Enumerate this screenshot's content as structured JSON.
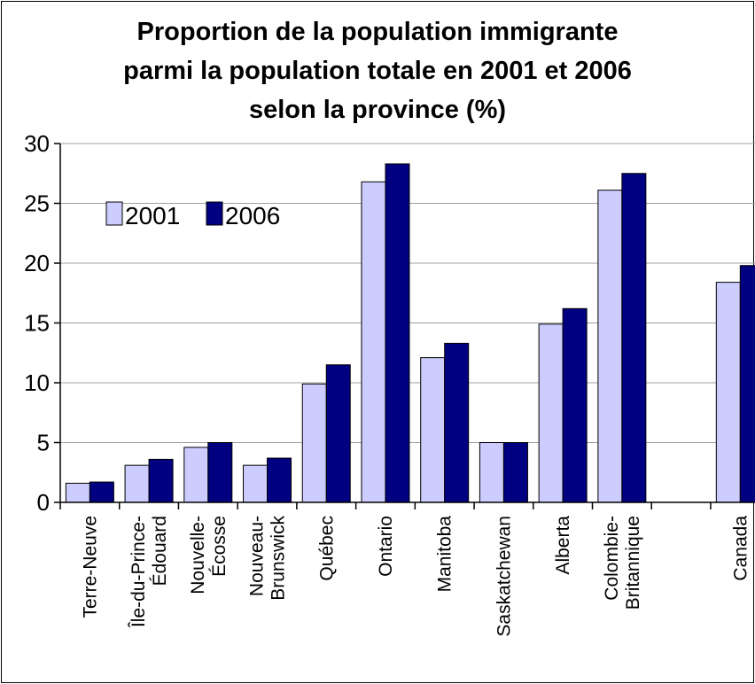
{
  "chart_data": {
    "type": "bar",
    "title_lines": [
      "Proportion de la population immigrante",
      "parmi la population totale en 2001 et 2006",
      "selon la province (%)"
    ],
    "categories": [
      [
        "Terre-Neuve"
      ],
      [
        "Île-du-Prince-",
        "Édouard"
      ],
      [
        "Nouvelle-",
        "Écosse"
      ],
      [
        "Nouveau-",
        "Brunswick"
      ],
      [
        "Québec"
      ],
      [
        "Ontario"
      ],
      [
        "Manitoba"
      ],
      [
        "Saskatchewan"
      ],
      [
        "Alberta"
      ],
      [
        "Colombie-",
        "Britannique"
      ],
      [
        ""
      ],
      [
        "Canada"
      ]
    ],
    "series": [
      {
        "name": "2001",
        "color": "#ccccff",
        "values": [
          1.6,
          3.1,
          4.6,
          3.1,
          9.9,
          26.8,
          12.1,
          5.0,
          14.9,
          26.1,
          null,
          18.4
        ]
      },
      {
        "name": "2006",
        "color": "#000080",
        "values": [
          1.7,
          3.6,
          5.0,
          3.7,
          11.5,
          28.3,
          13.3,
          5.0,
          16.2,
          27.5,
          null,
          19.8
        ]
      }
    ],
    "ylim": [
      0,
      30
    ],
    "yticks": [
      0,
      5,
      10,
      15,
      20,
      25,
      30
    ],
    "grid": true,
    "legend_position": "top-left"
  }
}
